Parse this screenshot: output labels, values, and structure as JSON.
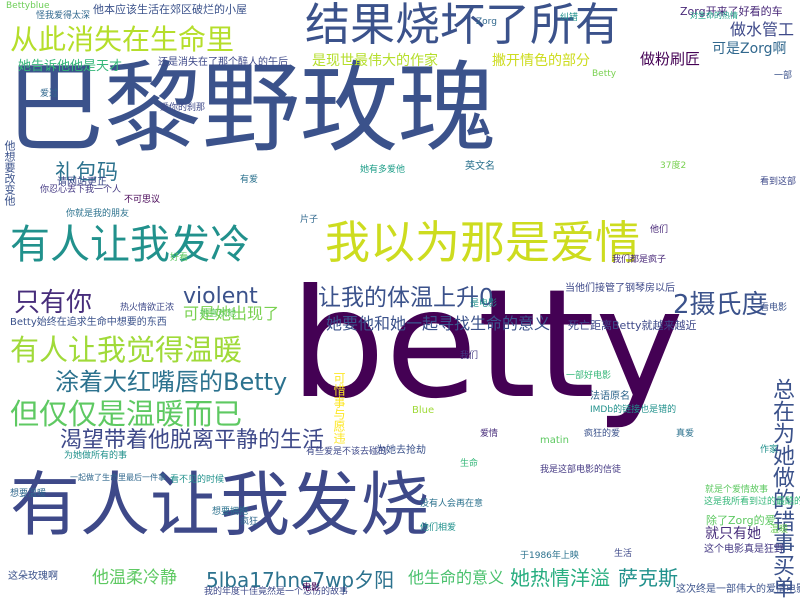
{
  "words": [
    {
      "text": "巴黎野玫瑰",
      "color": "#3b528b"
    },
    {
      "text": "betty",
      "color": "#440154"
    },
    {
      "text": "有人让我发烧",
      "color": "#3e4989"
    },
    {
      "text": "结果烧坏了所有",
      "color": "#3b528b"
    },
    {
      "text": "我以为那是爱情",
      "color": "#cddc1f"
    },
    {
      "text": "有人让我发冷",
      "color": "#21918c"
    },
    {
      "text": "从此消失在生命里",
      "color": "#b5de2b"
    },
    {
      "text": "有人让我觉得温暖",
      "color": "#a0da39"
    },
    {
      "text": "但仅仅是温暖而已",
      "color": "#5ec962"
    },
    {
      "text": "让我的体温上升0",
      "color": "#3b528b"
    },
    {
      "text": "涂着大红嘴唇的Betty",
      "color": "#2c728e"
    },
    {
      "text": "渴望带着他脱离平静的生活",
      "color": "#3e4989"
    },
    {
      "text": "只有你",
      "color": "#472d7b"
    },
    {
      "text": "violent",
      "color": "#3b528b"
    },
    {
      "text": "2摄氏度",
      "color": "#3b528b"
    },
    {
      "text": "礼包码",
      "color": "#2c728e"
    },
    {
      "text": "她要他和她一起寻找生命的意义",
      "color": "#3b528b"
    },
    {
      "text": "可是她出现了",
      "color": "#7ad151"
    },
    {
      "text": "5lba17hne7wp夕阳",
      "color": "#2c728e"
    },
    {
      "text": "他生命的意义",
      "color": "#4ac16d"
    },
    {
      "text": "她热情洋溢",
      "color": "#28ae80"
    },
    {
      "text": "萨克斯",
      "color": "#21918c"
    },
    {
      "text": "他温柔冷静",
      "color": "#5ec962"
    },
    {
      "text": "做水管工",
      "color": "#3e4989"
    },
    {
      "text": "可是Zorg啊",
      "color": "#31688e"
    },
    {
      "text": "做粉刷匠",
      "color": "#440154"
    },
    {
      "text": "就只有她",
      "color": "#472d7b"
    },
    {
      "text": "除了Zorg的爱",
      "color": "#5ec962"
    },
    {
      "text": "总在为她做的错事买单",
      "color": "#3b528b"
    },
    {
      "text": "Zorg开来了好看的车",
      "color": "#482878"
    },
    {
      "text": "是现世最伟大的作家",
      "color": "#b5de2b"
    },
    {
      "text": "撇开情色的部分",
      "color": "#cddc1f"
    },
    {
      "text": "她告诉他他是天才",
      "color": "#35b779"
    },
    {
      "text": "还是消失在了那个醉人的午后",
      "color": "#3e4989"
    },
    {
      "text": "他本应该生活在郊区破烂的小屋",
      "color": "#3b528b"
    },
    {
      "text": "怪我爱得太深",
      "color": "#31688e"
    },
    {
      "text": "英文名",
      "color": "#2c728e"
    },
    {
      "text": "死亡距离Betty就越来越近",
      "color": "#3e4989"
    },
    {
      "text": "法语原名",
      "color": "#31688e"
    },
    {
      "text": "可惜事与愿违",
      "color": "#fde725"
    },
    {
      "text": "为她去抢劫",
      "color": "#3b528b"
    },
    {
      "text": "当他们接管了钢琴房以后",
      "color": "#3e4989"
    },
    {
      "text": "请网站更正",
      "color": "#3e4989"
    },
    {
      "text": "纠错",
      "color": "#21918c"
    },
    {
      "text": "这是我所看到过的最酷的爱情片",
      "color": "#35b779"
    },
    {
      "text": "就是个爱情故事",
      "color": "#5ec962"
    },
    {
      "text": "这个电影真是狂野",
      "color": "#443983"
    },
    {
      "text": "这次终是一部伟大的爱情电影",
      "color": "#3b528b"
    },
    {
      "text": "这朵玫瑰啊",
      "color": "#3b528b"
    },
    {
      "text": "一起做了生命里最后一件事",
      "color": "#31688e"
    },
    {
      "text": "想要温暖",
      "color": "#31688e"
    },
    {
      "text": "为她做所有的事",
      "color": "#21918c"
    },
    {
      "text": "她喜欢他",
      "color": "#5ec962"
    },
    {
      "text": "我的年度十佳竟然是一个恋伤的故事",
      "color": "#3e4989"
    },
    {
      "text": "于1986年上映",
      "color": "#2c728e"
    },
    {
      "text": "Betty始终在追求生命中想要的东西",
      "color": "#3b528b"
    },
    {
      "text": "对生命的热情",
      "color": "#1fa188"
    },
    {
      "text": "热火情欲正浓",
      "color": "#3e4989"
    },
    {
      "text": "你忍心丢下我一个人",
      "color": "#443983"
    },
    {
      "text": "没有人会再在意",
      "color": "#2c728e"
    },
    {
      "text": "想要拥抱",
      "color": "#2c728e"
    },
    {
      "text": "有些爱是不该去碰的",
      "color": "#3e4989"
    },
    {
      "text": "我是这部电影的信徒",
      "color": "#443983"
    },
    {
      "text": "IMDb的链接也是错的",
      "color": "#21918c"
    },
    {
      "text": "Betty",
      "color": "#7ad151"
    },
    {
      "text": "Blue",
      "color": "#a0da39"
    },
    {
      "text": "matin",
      "color": "#5ec962"
    },
    {
      "text": "Zorg",
      "color": "#31688e"
    },
    {
      "text": "Bettyblue",
      "color": "#6ece58"
    },
    {
      "text": "他想要改变他",
      "color": "#3b528b"
    },
    {
      "text": "他们相爱",
      "color": "#21918c"
    },
    {
      "text": "37度2",
      "color": "#7ad151"
    },
    {
      "text": "爱你的刹那",
      "color": "#3e4989"
    },
    {
      "text": "看不见的时候",
      "color": "#21918c"
    },
    {
      "text": "我们都是疯子",
      "color": "#482878"
    },
    {
      "text": "你就是我的朋友",
      "color": "#2c728e"
    },
    {
      "text": "疯狂的爱",
      "color": "#3b528b"
    },
    {
      "text": "不可思议",
      "color": "#440154"
    },
    {
      "text": "爱过",
      "color": "#31688e"
    },
    {
      "text": "一部好电影",
      "color": "#35b779"
    },
    {
      "text": "一部",
      "color": "#3b528b"
    },
    {
      "text": "有爱",
      "color": "#2c728e"
    },
    {
      "text": "她有多爱他",
      "color": "#1f9e89"
    },
    {
      "text": "看到这部",
      "color": "#3e4989"
    },
    {
      "text": "是电影",
      "color": "#21918c"
    },
    {
      "text": "好看",
      "color": "#5ec962"
    },
    {
      "text": "疯狂",
      "color": "#31688e"
    },
    {
      "text": "电影",
      "color": "#440154"
    },
    {
      "text": "他们",
      "color": "#482878"
    },
    {
      "text": "看电影",
      "color": "#3b528b"
    },
    {
      "text": "真爱",
      "color": "#2c728e"
    },
    {
      "text": "作家",
      "color": "#21918c"
    },
    {
      "text": "我们",
      "color": "#443983"
    },
    {
      "text": "片子",
      "color": "#31688e"
    },
    {
      "text": "生活",
      "color": "#3e4989"
    },
    {
      "text": "爱情",
      "color": "#472d7b"
    },
    {
      "text": "温暖",
      "color": "#6ece58"
    },
    {
      "text": "生命",
      "color": "#35b779"
    }
  ]
}
